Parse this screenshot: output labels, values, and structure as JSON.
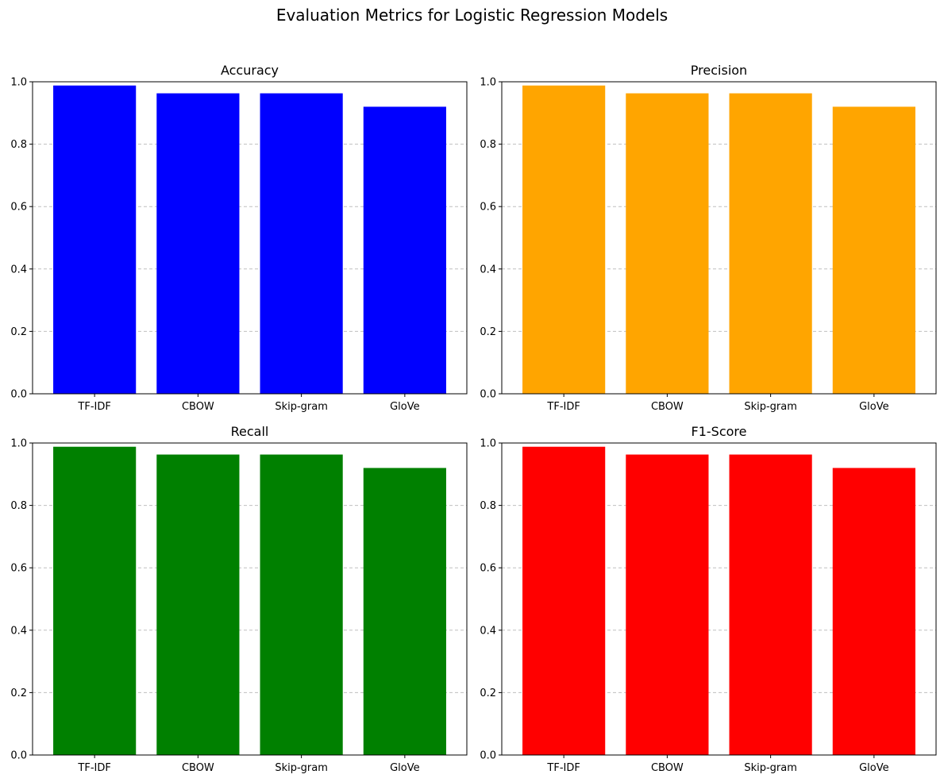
{
  "figure": {
    "title": "Evaluation Metrics for Logistic Regression Models"
  },
  "chart_data": [
    {
      "type": "bar",
      "title": "Accuracy",
      "categories": [
        "TF-IDF",
        "CBOW",
        "Skip-gram",
        "GloVe"
      ],
      "values": [
        0.988,
        0.963,
        0.963,
        0.92
      ],
      "ylim": [
        0,
        1
      ],
      "yticks": [
        "0.0",
        "0.2",
        "0.4",
        "0.6",
        "0.8",
        "1.0"
      ],
      "grid": "y",
      "color": "#0000ff"
    },
    {
      "type": "bar",
      "title": "Precision",
      "categories": [
        "TF-IDF",
        "CBOW",
        "Skip-gram",
        "GloVe"
      ],
      "values": [
        0.988,
        0.963,
        0.963,
        0.92
      ],
      "ylim": [
        0,
        1
      ],
      "yticks": [
        "0.0",
        "0.2",
        "0.4",
        "0.6",
        "0.8",
        "1.0"
      ],
      "grid": "y",
      "color": "#ffa500"
    },
    {
      "type": "bar",
      "title": "Recall",
      "categories": [
        "TF-IDF",
        "CBOW",
        "Skip-gram",
        "GloVe"
      ],
      "values": [
        0.988,
        0.963,
        0.963,
        0.92
      ],
      "ylim": [
        0,
        1
      ],
      "yticks": [
        "0.0",
        "0.2",
        "0.4",
        "0.6",
        "0.8",
        "1.0"
      ],
      "grid": "y",
      "color": "#008000"
    },
    {
      "type": "bar",
      "title": "F1-Score",
      "categories": [
        "TF-IDF",
        "CBOW",
        "Skip-gram",
        "GloVe"
      ],
      "values": [
        0.988,
        0.963,
        0.963,
        0.92
      ],
      "ylim": [
        0,
        1
      ],
      "yticks": [
        "0.0",
        "0.2",
        "0.4",
        "0.6",
        "0.8",
        "1.0"
      ],
      "grid": "y",
      "color": "#ff0000"
    }
  ]
}
